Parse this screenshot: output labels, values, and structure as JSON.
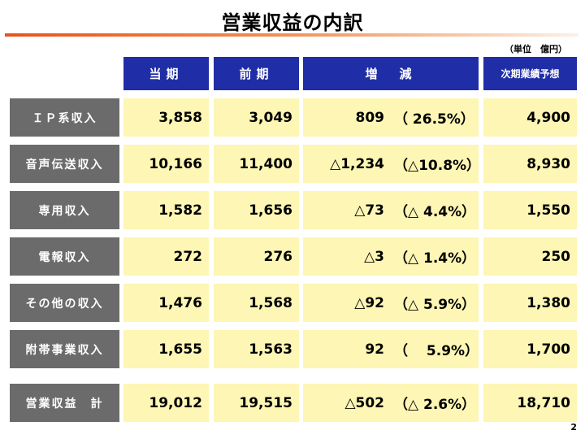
{
  "title": "営業収益の内訳",
  "unit": "（単位　億円）",
  "headers": {
    "current": "当期",
    "previous": "前期",
    "change": "増　減",
    "forecast": "次期業績予想"
  },
  "rows": [
    {
      "label": "ＩＰ系収入",
      "current": "3,858",
      "previous": "3,049",
      "diff": "809",
      "pct": "（ 26.5%）",
      "forecast": "4,900"
    },
    {
      "label": "音声伝送収入",
      "current": "10,166",
      "previous": "11,400",
      "diff": "△1,234",
      "pct": "（△10.8%）",
      "forecast": "8,930"
    },
    {
      "label": "専用収入",
      "current": "1,582",
      "previous": "1,656",
      "diff": "△73",
      "pct": "（△ 4.4%）",
      "forecast": "1,550"
    },
    {
      "label": "電報収入",
      "current": "272",
      "previous": "276",
      "diff": "△3",
      "pct": "（△ 1.4%）",
      "forecast": "250"
    },
    {
      "label": "その他の収入",
      "current": "1,476",
      "previous": "1,568",
      "diff": "△92",
      "pct": "（△ 5.9%）",
      "forecast": "1,380"
    },
    {
      "label": "附帯事業収入",
      "current": "1,655",
      "previous": "1,563",
      "diff": "92",
      "pct": "（　 5.9%）",
      "forecast": "1,700"
    }
  ],
  "total": {
    "label": "営業収益　計",
    "current": "19,012",
    "previous": "19,515",
    "diff": "△502",
    "pct": "（△ 2.6%）",
    "forecast": "18,710"
  },
  "page_number": "2"
}
